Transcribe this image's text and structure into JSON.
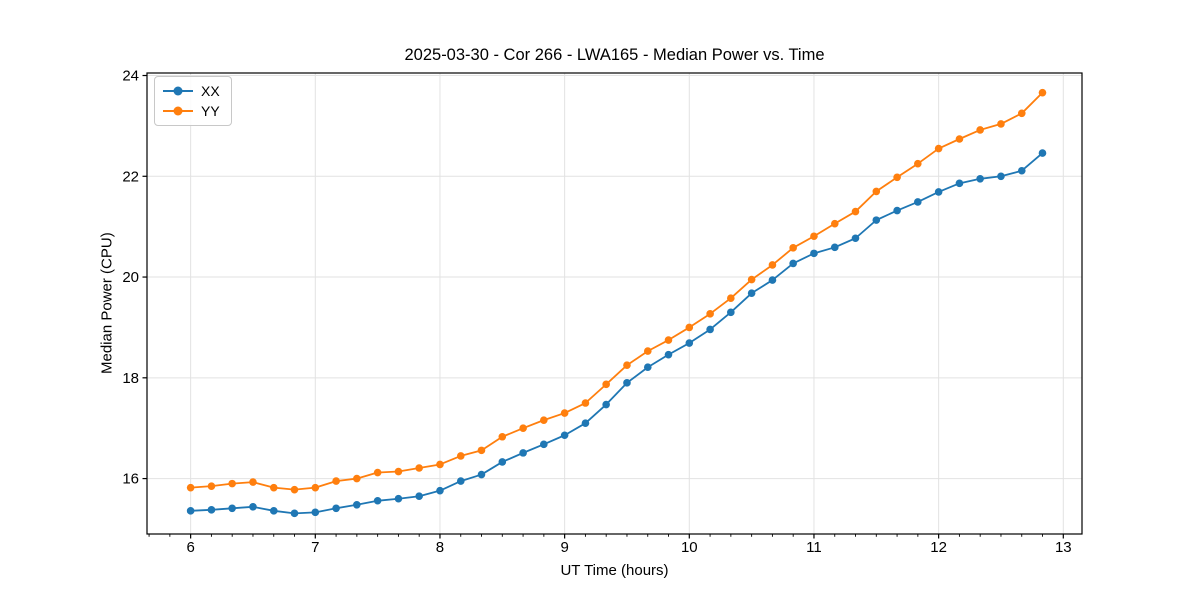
{
  "chart_data": {
    "type": "line",
    "title": "2025-03-30 - Cor 266 - LWA165 - Median Power vs. Time",
    "xlabel": "UT Time (hours)",
    "ylabel": "Median Power (CPU)",
    "xlim": [
      5.65,
      13.15
    ],
    "ylim": [
      14.9,
      24.05
    ],
    "x_ticks": [
      6,
      7,
      8,
      9,
      10,
      11,
      12,
      13
    ],
    "y_ticks": [
      16,
      18,
      20,
      22,
      24
    ],
    "x_minor_tick_step_hours": 0.16667,
    "grid": true,
    "legend": {
      "position": "upper left"
    },
    "style": {
      "grid_color": "#e2e2e2",
      "spine_color": "#000000",
      "line_width": 1.8,
      "marker_radius": 3.8
    },
    "x": [
      6.0,
      6.167,
      6.333,
      6.5,
      6.667,
      6.833,
      7.0,
      7.167,
      7.333,
      7.5,
      7.667,
      7.833,
      8.0,
      8.167,
      8.333,
      8.5,
      8.667,
      8.833,
      9.0,
      9.167,
      9.333,
      9.5,
      9.667,
      9.833,
      10.0,
      10.167,
      10.333,
      10.5,
      10.667,
      10.833,
      11.0,
      11.167,
      11.333,
      11.5,
      11.667,
      11.833,
      12.0,
      12.167,
      12.333,
      12.5,
      12.667,
      12.833
    ],
    "series": [
      {
        "name": "XX",
        "color": "#1f77b4",
        "marker": "circle",
        "values": [
          15.36,
          15.38,
          15.41,
          15.44,
          15.36,
          15.31,
          15.33,
          15.41,
          15.48,
          15.56,
          15.6,
          15.65,
          15.76,
          15.95,
          16.08,
          16.33,
          16.51,
          16.68,
          16.86,
          17.1,
          17.47,
          17.9,
          18.21,
          18.46,
          18.69,
          18.96,
          19.3,
          19.68,
          19.94,
          20.27,
          20.47,
          20.59,
          20.77,
          21.13,
          21.32,
          21.49,
          21.69,
          21.86,
          21.95,
          22.0,
          22.11,
          22.46
        ]
      },
      {
        "name": "YY",
        "color": "#ff7f0e",
        "marker": "circle",
        "values": [
          15.82,
          15.85,
          15.9,
          15.93,
          15.82,
          15.78,
          15.82,
          15.95,
          16.0,
          16.12,
          16.14,
          16.21,
          16.28,
          16.45,
          16.56,
          16.83,
          17.0,
          17.16,
          17.3,
          17.5,
          17.87,
          18.25,
          18.53,
          18.75,
          19.0,
          19.27,
          19.58,
          19.95,
          20.24,
          20.58,
          20.81,
          21.06,
          21.3,
          21.7,
          21.98,
          22.25,
          22.55,
          22.74,
          22.92,
          23.04,
          23.25,
          23.66
        ]
      }
    ]
  }
}
